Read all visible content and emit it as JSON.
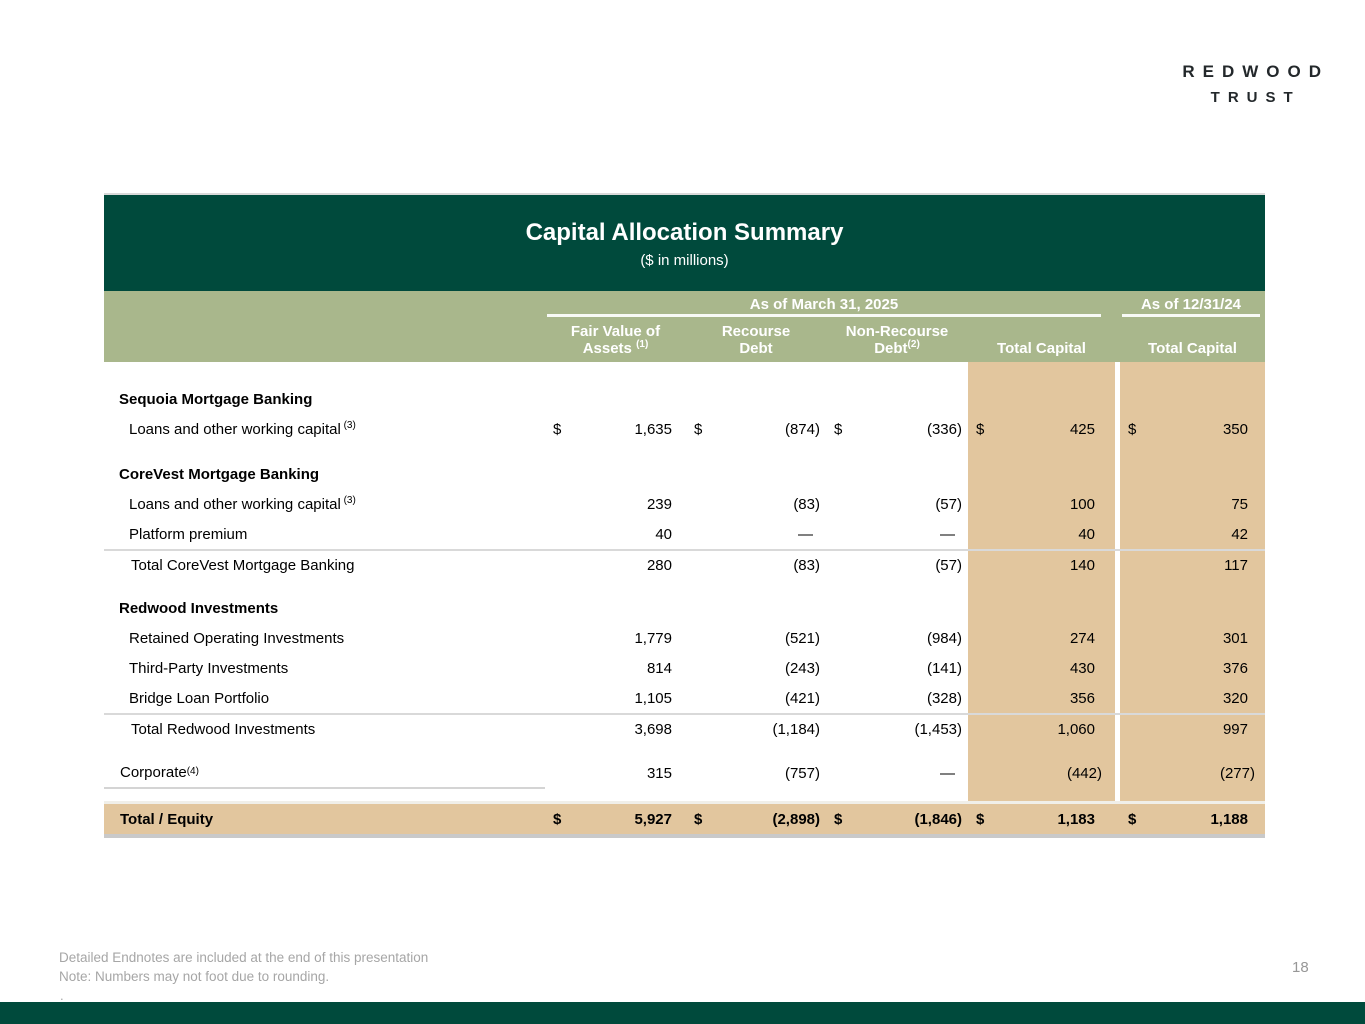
{
  "logo": {
    "line1": "REDWOOD",
    "line2": "TRUST"
  },
  "colors": {
    "header_green": "#004a3c",
    "band_green": "#a9b78c",
    "highlight_tan": "#e2c69e",
    "footnote_gray": "#a6a6a6"
  },
  "table": {
    "title": "Capital Allocation Summary",
    "subtitle": "($ in millions)",
    "col_groups": [
      {
        "label": "As of March 31, 2025"
      },
      {
        "label": "As of 12/31/24"
      }
    ],
    "columns": [
      {
        "line1": "Fair Value of",
        "line2": "Assets",
        "sup": "(1)"
      },
      {
        "line1": "Recourse",
        "line2": "Debt",
        "sup": ""
      },
      {
        "line1": "Non-Recourse",
        "line2": "Debt",
        "sup": "(2)"
      },
      {
        "line1": "",
        "line2": "Total Capital",
        "sup": ""
      },
      {
        "line1": "",
        "line2": "Total Capital",
        "sup": ""
      }
    ],
    "rows": [
      {
        "type": "spacer",
        "height": 22
      },
      {
        "type": "section",
        "label": "Sequoia Mortgage Banking"
      },
      {
        "type": "data",
        "label": "Loans and other working capital",
        "sup": "(3)",
        "dollar": true,
        "values": [
          "1,635",
          "(874)",
          "(336)",
          "425",
          "350"
        ]
      },
      {
        "type": "spacer",
        "height": 15
      },
      {
        "type": "section",
        "label": "CoreVest Mortgage Banking"
      },
      {
        "type": "data",
        "label": "Loans and other working capital",
        "sup": "(3)",
        "values": [
          "239",
          "(83)",
          "(57)",
          "100",
          "75"
        ]
      },
      {
        "type": "data",
        "label": "Platform premium",
        "values": [
          "40",
          "—",
          "—",
          "40",
          "42"
        ]
      },
      {
        "type": "subtotal",
        "label": "Total CoreVest Mortgage Banking",
        "top_border": true,
        "values": [
          "280",
          "(83)",
          "(57)",
          "140",
          "117"
        ]
      },
      {
        "type": "spacer",
        "height": 14
      },
      {
        "type": "section",
        "label": "Redwood Investments"
      },
      {
        "type": "data",
        "label": "Retained Operating Investments",
        "values": [
          "1,779",
          "(521)",
          "(984)",
          "274",
          "301"
        ]
      },
      {
        "type": "data",
        "label": "Third-Party Investments",
        "values": [
          "814",
          "(243)",
          "(141)",
          "430",
          "376"
        ]
      },
      {
        "type": "data",
        "label": "Bridge Loan Portfolio",
        "values": [
          "1,105",
          "(421)",
          "(328)",
          "356",
          "320"
        ]
      },
      {
        "type": "subtotal",
        "label": "Total Redwood Investments",
        "top_border": true,
        "values": [
          "3,698",
          "(1,184)",
          "(1,453)",
          "1,060",
          "997"
        ]
      },
      {
        "type": "spacer",
        "height": 15
      },
      {
        "type": "corporate",
        "label": "Corporate",
        "sup": "(4)",
        "values": [
          "315",
          "(757)",
          "—",
          "(442)",
          "(277)"
        ]
      },
      {
        "type": "spacer",
        "height": 13
      },
      {
        "type": "grand",
        "label": "Total / Equity",
        "dollar": true,
        "values": [
          "5,927",
          "(2,898)",
          "(1,846)",
          "1,183",
          "1,188"
        ]
      }
    ]
  },
  "footnotes": {
    "line1": "Detailed Endnotes are included at the end of this presentation",
    "line2": "Note: Numbers may not foot due to rounding.",
    "stray_dot": "."
  },
  "page_number": "18"
}
